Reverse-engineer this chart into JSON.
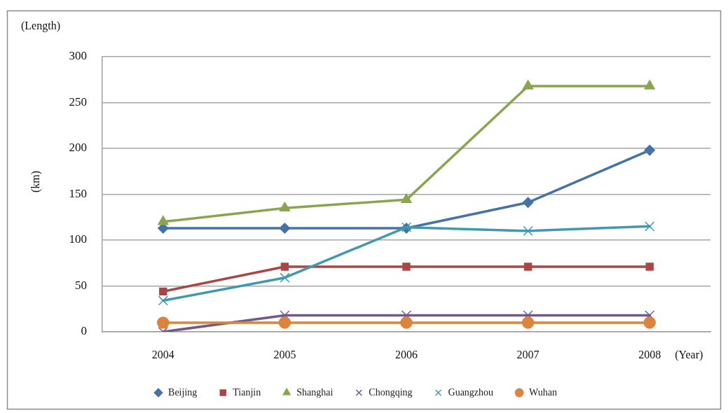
{
  "chart_data": {
    "type": "line",
    "annotations": [
      "(Length)"
    ],
    "ylabel": "(km)",
    "xlabel": "(Year)",
    "categories": [
      "2004",
      "2005",
      "2006",
      "2007",
      "2008"
    ],
    "series": [
      {
        "name": "Beijing",
        "color": "#4572a7",
        "marker": "diamond",
        "values": [
          113,
          113,
          113,
          141,
          198
        ]
      },
      {
        "name": "Tianjin",
        "color": "#aa4643",
        "marker": "square",
        "values": [
          44,
          71,
          71,
          71,
          71
        ]
      },
      {
        "name": "Shanghai",
        "color": "#89a54e",
        "marker": "triangle",
        "values": [
          120,
          135,
          144,
          268,
          268
        ]
      },
      {
        "name": "Chongqing",
        "color": "#71588f",
        "marker": "cross",
        "values": [
          0,
          18,
          18,
          18,
          18
        ]
      },
      {
        "name": "Guangzhou",
        "color": "#4198af",
        "marker": "cross",
        "values": [
          34,
          59,
          114,
          110,
          115
        ]
      },
      {
        "name": "Wuhan",
        "color": "#db843d",
        "marker": "circle",
        "values": [
          10,
          10,
          10,
          10,
          10
        ]
      }
    ],
    "ylim": [
      0,
      300
    ],
    "yticks": [
      0,
      50,
      100,
      150,
      200,
      250,
      300
    ],
    "grid": "y",
    "legend": "bottom",
    "line_style": "solid"
  }
}
